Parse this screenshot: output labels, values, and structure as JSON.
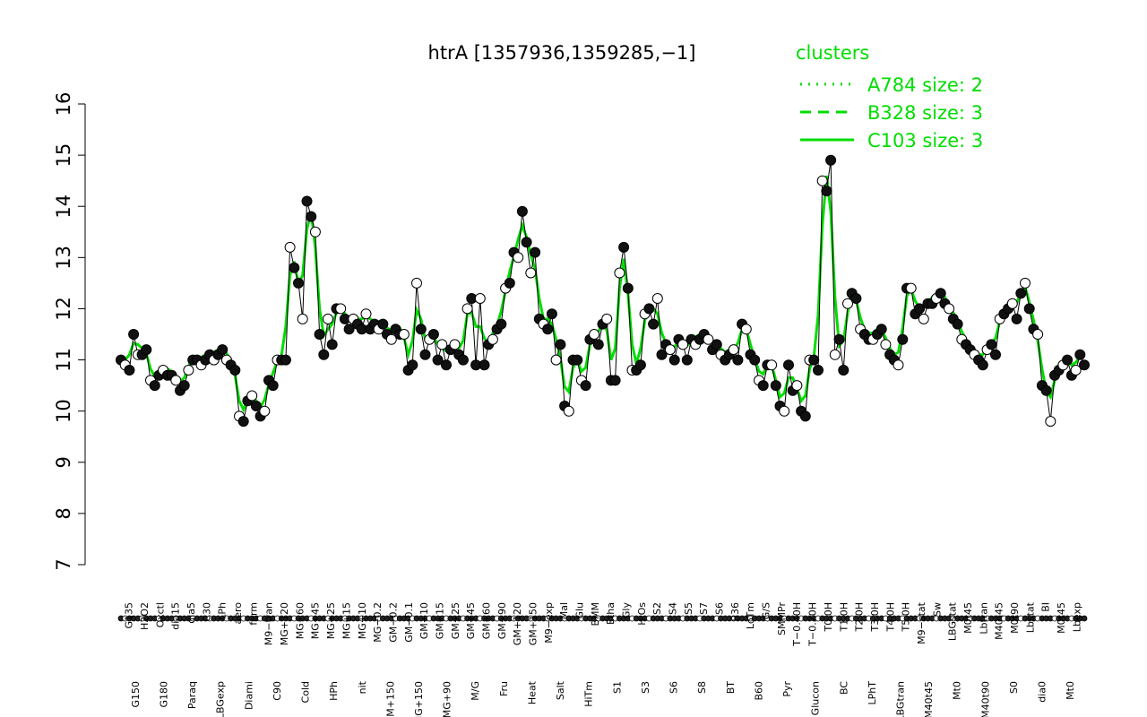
{
  "chart_data": {
    "type": "line",
    "title": "htrA [1357936,1359285,−1]",
    "xlabel": "",
    "ylabel": "",
    "ylim": [
      7,
      16
    ],
    "yticks": [
      7,
      8,
      9,
      10,
      11,
      12,
      13,
      14,
      15,
      16
    ],
    "grid": false,
    "legend": {
      "title": "clusters",
      "placement": "top-right",
      "color": "#00dd00",
      "entries": [
        {
          "label": "A784 size: 2",
          "linestyle": "dotted"
        },
        {
          "label": "B328 size: 3",
          "linestyle": "dashed"
        },
        {
          "label": "C103 size: 3",
          "linestyle": "solid"
        }
      ]
    },
    "x_tick_labels_top": [
      "G135",
      "H2O2",
      "Oxctl",
      "dia15",
      "dia5",
      "C30",
      "LPh",
      "aero",
      "ferm",
      "M9−tran",
      "MG+120",
      "MG+60",
      "MG+45",
      "MG+25",
      "MG+15",
      "MG+10",
      "MG−0.2",
      "GM−0.2",
      "GM−0.1",
      "GM+10",
      "GM+15",
      "GM+25",
      "GM+45",
      "GM+60",
      "GM+90",
      "GM+120",
      "GM+150",
      "M9−exp",
      "Mal",
      "Glu",
      "BMM",
      "Etha",
      "Gly",
      "HiOs",
      "S2",
      "S4",
      "S5",
      "S7",
      "S6",
      "B36",
      "LoTm",
      "G/S",
      "SMMPr",
      "T−0.40H",
      "T−0.20H",
      "T0.0H",
      "T1.0H",
      "T2.0H",
      "T3.0H",
      "T4.0H",
      "T5.0H",
      "M9−stat",
      "Sw",
      "LBGstat",
      "M0t45",
      "Lbtran",
      "M40t45",
      "M0t90",
      "Lbstat",
      "BI",
      "M0t45",
      "Lbexp"
    ],
    "x_tick_labels_bottom": [
      "G150",
      "G180",
      "Paraq",
      "LBGexp",
      "Diami",
      "C90",
      "Cold",
      "HPh",
      "nit",
      "GM+150",
      "MG+150",
      "MG+90",
      "M/G",
      "Fru",
      "Heat",
      "Salt",
      "HiTm",
      "S1",
      "S3",
      "S6",
      "S8",
      "BT",
      "B60",
      "Pyr",
      "Glucon",
      "BC",
      "LPhT",
      "LBGtran",
      "M40t45",
      "Mt0",
      "M40t90",
      "S0",
      "dia0",
      "Mt0"
    ],
    "series": [
      {
        "name": "",
        "values": [
          11.0,
          10.9,
          10.8,
          11.5,
          11.1,
          11.1,
          11.2,
          10.6,
          10.5,
          10.7,
          10.8,
          10.7,
          10.7,
          10.6,
          10.4,
          10.5,
          10.8,
          11.0,
          11.0,
          10.9,
          11.0,
          11.1,
          11.0,
          11.1,
          11.2,
          11.0,
          10.9,
          10.8,
          9.9,
          9.8,
          10.2,
          10.3,
          10.1,
          9.9,
          10.0,
          10.6,
          10.5,
          11.0,
          11.0,
          11.0,
          13.2,
          12.8,
          12.5,
          11.8,
          14.1,
          13.8,
          13.5,
          11.5,
          11.1,
          11.8,
          11.3,
          12.0,
          12.0,
          11.8,
          11.6,
          11.8,
          11.7,
          11.6,
          11.9,
          11.6,
          11.7,
          11.6,
          11.7,
          11.5,
          11.4,
          11.6,
          11.5,
          11.5,
          10.8,
          10.9,
          12.5,
          11.6,
          11.1,
          11.4,
          11.5,
          11.0,
          11.3,
          10.9,
          11.2,
          11.3,
          11.1,
          11.0,
          12.0,
          12.2,
          10.9,
          12.2,
          10.9,
          11.3,
          11.4,
          11.6,
          11.7,
          12.4,
          12.5,
          13.1,
          13.0,
          13.9,
          13.3,
          12.7,
          13.1,
          11.8,
          11.7,
          11.6,
          11.9,
          11.0,
          11.3,
          10.1,
          10.0,
          11.0,
          11.0,
          10.6,
          10.5,
          11.4,
          11.5,
          11.3,
          11.7,
          11.8,
          10.6,
          10.6,
          12.7,
          13.2,
          12.4,
          10.8,
          10.8,
          10.9,
          11.9,
          12.0,
          11.7,
          12.2,
          11.1,
          11.3,
          11.2,
          11.0,
          11.4,
          11.3,
          11.0,
          11.4,
          11.3,
          11.4,
          11.5,
          11.4,
          11.2,
          11.3,
          11.1,
          11.0,
          11.1,
          11.2,
          11.0,
          11.7,
          11.6,
          11.1,
          11.0,
          10.6,
          10.5,
          10.9,
          10.9,
          10.5,
          10.1,
          10.0,
          10.9,
          10.4,
          10.5,
          10.0,
          9.9,
          11.0,
          11.0,
          10.8,
          14.5,
          14.3,
          14.9,
          11.1,
          11.4,
          10.8,
          12.1,
          12.3,
          12.2,
          11.6,
          11.5,
          11.4,
          11.4,
          11.5,
          11.6,
          11.3,
          11.1,
          11.0,
          10.9,
          11.4,
          12.4,
          12.4,
          11.9,
          12.0,
          11.8,
          12.1,
          12.1,
          12.2,
          12.3,
          12.1,
          12.0,
          11.8,
          11.7,
          11.4,
          11.3,
          11.2,
          11.1,
          11.0,
          10.9,
          11.2,
          11.3,
          11.1,
          11.8,
          11.9,
          12.0,
          12.1,
          11.8,
          12.3,
          12.5,
          12.0,
          11.6,
          11.5,
          10.5,
          10.4,
          9.8,
          10.7,
          10.8,
          10.9,
          11.0,
          10.7,
          10.8,
          11.1,
          10.9
        ]
      }
    ]
  }
}
